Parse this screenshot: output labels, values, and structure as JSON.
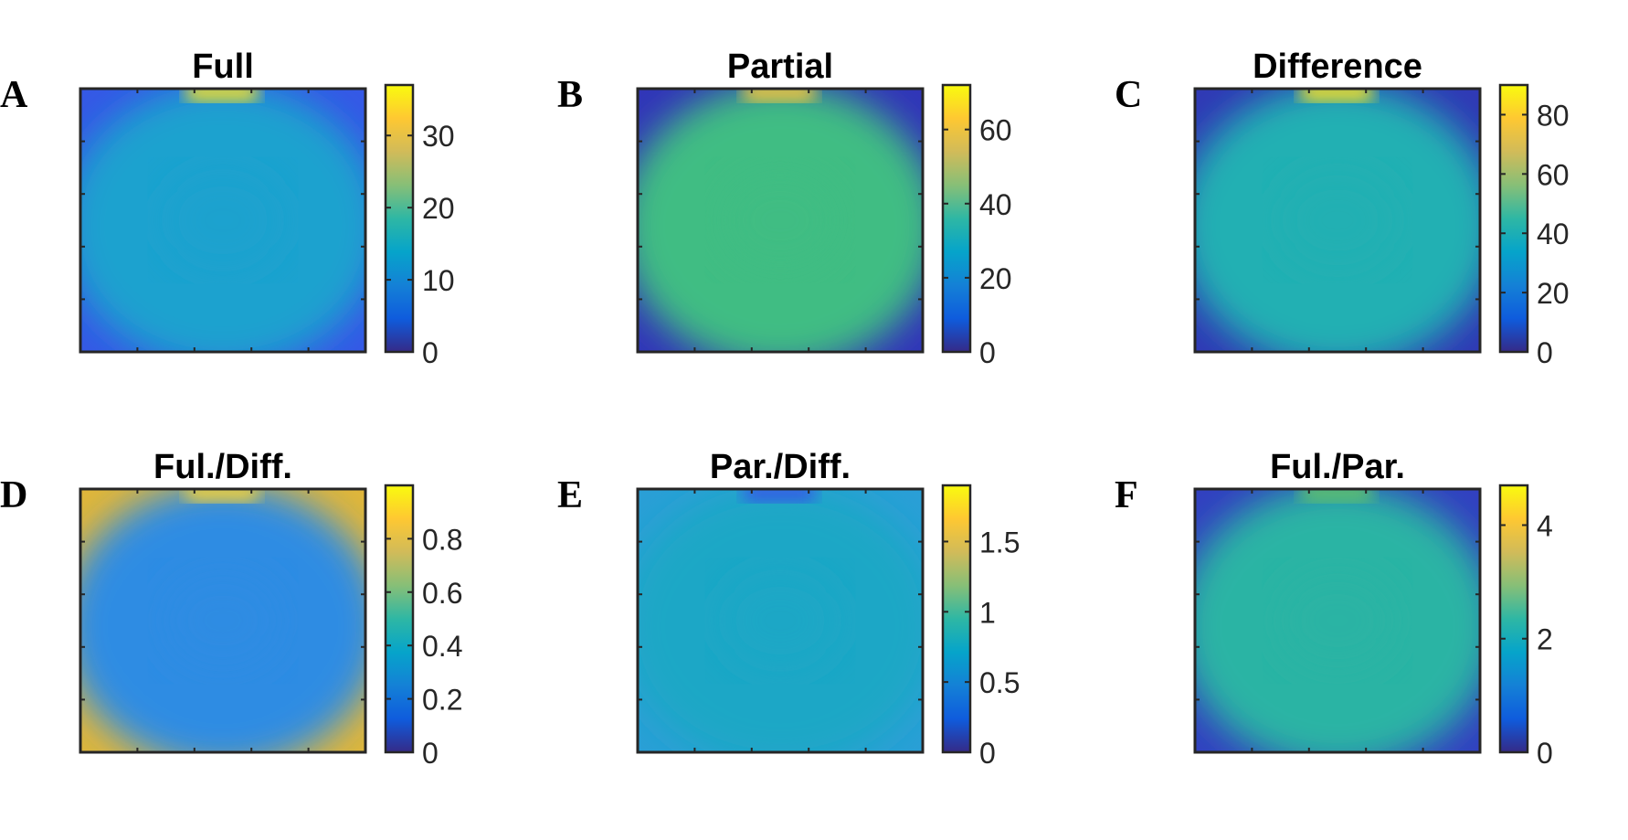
{
  "figure": {
    "panels": [
      {
        "label": "A",
        "title": "Full"
      },
      {
        "label": "B",
        "title": "Partial"
      },
      {
        "label": "C",
        "title": "Difference"
      },
      {
        "label": "D",
        "title": "Ful./Diff."
      },
      {
        "label": "E",
        "title": "Par./Diff."
      },
      {
        "label": "F",
        "title": "Ful./Par."
      }
    ]
  },
  "chart_data": [
    {
      "type": "heatmap",
      "panel": "A",
      "title": "Full",
      "colormap": "parula",
      "clim": [
        0,
        37
      ],
      "colorbar_ticks": [
        0,
        10,
        20,
        30
      ],
      "colorbar_tick_labels": [
        "0",
        "10",
        "20",
        "30"
      ],
      "colors": {
        "border": "#262626",
        "center": "#1fa2cf",
        "corner": "#3558e6",
        "hotspot": "#f6e225"
      }
    },
    {
      "type": "heatmap",
      "panel": "B",
      "title": "Partial",
      "colormap": "parula",
      "clim": [
        0,
        72
      ],
      "colorbar_ticks": [
        0,
        20,
        40,
        60
      ],
      "colorbar_tick_labels": [
        "0",
        "20",
        "40",
        "60"
      ],
      "colors": {
        "border": "#262626",
        "center": "#41bd83",
        "corner": "#3135b8",
        "hotspot": "#f7c93a"
      }
    },
    {
      "type": "heatmap",
      "panel": "C",
      "title": "Difference",
      "colormap": "parula",
      "clim": [
        0,
        90
      ],
      "colorbar_ticks": [
        0,
        20,
        40,
        60,
        80
      ],
      "colorbar_tick_labels": [
        "0",
        "20",
        "40",
        "60",
        "80"
      ],
      "colors": {
        "border": "#262626",
        "center": "#21b0b3",
        "corner": "#3039b5",
        "hotspot": "#f9e424"
      }
    },
    {
      "type": "heatmap",
      "panel": "D",
      "title": "Ful./Diff.",
      "colormap": "parula",
      "clim": [
        0,
        1
      ],
      "colorbar_ticks": [
        0,
        0.2,
        0.4,
        0.6,
        0.8
      ],
      "colorbar_tick_labels": [
        "0",
        "0.2",
        "0.4",
        "0.6",
        "0.8"
      ],
      "colors": {
        "border": "#262626",
        "center": "#2e8ce3",
        "corner": "#e0b63a",
        "hotspot": "#f3d23a"
      }
    },
    {
      "type": "heatmap",
      "panel": "E",
      "title": "Par./Diff.",
      "colormap": "parula",
      "clim": [
        0,
        1.9
      ],
      "colorbar_ticks": [
        0,
        0.5,
        1,
        1.5
      ],
      "colorbar_tick_labels": [
        "0",
        "0.5",
        "1",
        "1.5"
      ],
      "colors": {
        "border": "#262626",
        "center": "#1ea7c6",
        "corner": "#2a9fd6",
        "hotspot": "#3558e6"
      }
    },
    {
      "type": "heatmap",
      "panel": "F",
      "title": "Ful./Par.",
      "colormap": "parula",
      "clim": [
        0,
        4.7
      ],
      "colorbar_ticks": [
        0,
        2,
        4
      ],
      "colorbar_tick_labels": [
        "0",
        "2",
        "4"
      ],
      "colors": {
        "border": "#262626",
        "center": "#2ab4a4",
        "corner": "#3240c0",
        "hotspot": "#61c36a"
      }
    }
  ]
}
